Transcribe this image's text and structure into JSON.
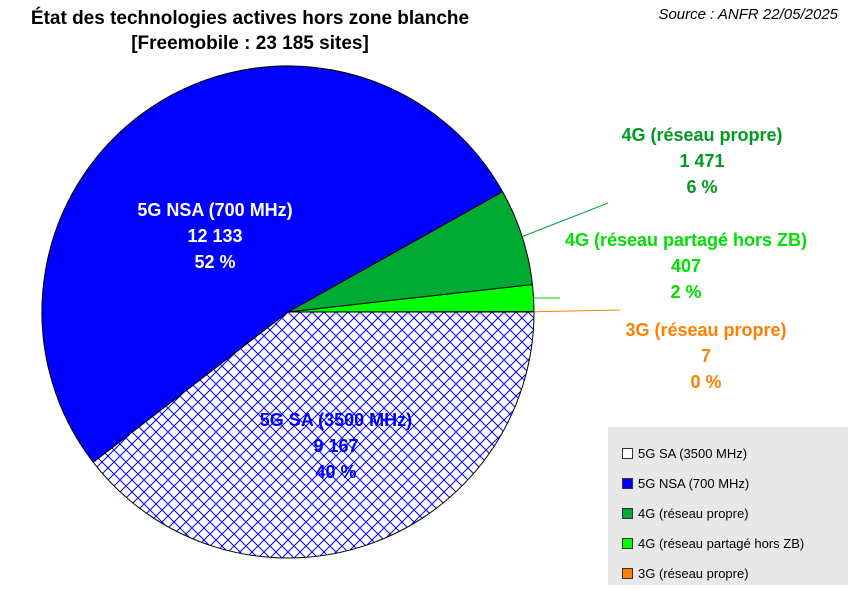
{
  "title": {
    "line1": "État des technologies actives hors zone blanche",
    "line2": "[Freemobile : 23 185 sites]"
  },
  "source": "Source : ANFR 22/05/2025",
  "chart_data": {
    "type": "pie",
    "title": "État des technologies actives hors zone blanche [Freemobile : 23 185 sites]",
    "total": 23185,
    "start_angle_deg": 0,
    "direction": "counterclockwise",
    "slices": [
      {
        "key": "3g",
        "label": "3G (réseau propre)",
        "value_text": "7",
        "value": 7,
        "percent_text": "0 %",
        "color": "#ff8000",
        "label_color": "#ff8000"
      },
      {
        "key": "4g_zb",
        "label": "4G (réseau partagé hors ZB)",
        "value_text": "407",
        "value": 407,
        "percent_text": "2 %",
        "color": "#00ff00",
        "label_color": "#00e000"
      },
      {
        "key": "4g",
        "label": "4G (réseau propre)",
        "value_text": "1 471",
        "value": 1471,
        "percent_text": "6 %",
        "color": "#00aa33",
        "label_color": "#009a20"
      },
      {
        "key": "5g_nsa",
        "label": "5G NSA (700 MHz)",
        "value_text": "12 133",
        "value": 12133,
        "percent_text": "52 %",
        "color": "#0000ff",
        "label_color": "#ffffff"
      },
      {
        "key": "5g_sa",
        "label": "5G SA (3500 MHz)",
        "value_text": "9 167",
        "value": 9167,
        "percent_text": "40 %",
        "color": "#ffffff",
        "label_color": "#0000ff",
        "pattern": "crosshatch",
        "pattern_color": "#0000ff"
      }
    ],
    "legend": {
      "position": "bottom-right",
      "items": [
        {
          "label": "5G SA (3500 MHz)",
          "color": "#ffffff"
        },
        {
          "label": "5G NSA (700 MHz)",
          "color": "#0000ff"
        },
        {
          "label": "4G (réseau propre)",
          "color": "#00aa33"
        },
        {
          "label": "4G (réseau partagé hors ZB)",
          "color": "#00ff00"
        },
        {
          "label": "3G (réseau propre)",
          "color": "#ff8000"
        }
      ]
    }
  }
}
